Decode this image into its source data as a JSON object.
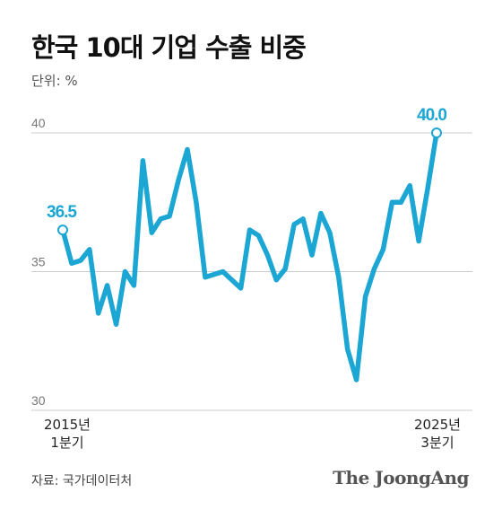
{
  "title": "한국 10대 기업 수출 비중",
  "unit_label": "단위: %",
  "source": "자료: 국가데이터처",
  "brand": "The JoongAng",
  "colors": {
    "line": "#1ba6d4",
    "grid": "#cccccc",
    "label": "#1ba6d4"
  },
  "chart_data": {
    "type": "line",
    "title": "한국 10대 기업 수출 비중",
    "ylabel": "단위: %",
    "ylim": [
      30,
      40
    ],
    "yticks": [
      30,
      35,
      40
    ],
    "x_start_label": [
      "2015년",
      "1분기"
    ],
    "x_end_label": [
      "2025년",
      "3분기"
    ],
    "annotations": [
      {
        "index": 0,
        "text": "36.5"
      },
      {
        "index": 42,
        "text": "40.0"
      }
    ],
    "values": [
      36.5,
      35.3,
      35.4,
      35.8,
      33.5,
      34.5,
      33.1,
      35.0,
      34.5,
      39.0,
      36.4,
      36.9,
      37.0,
      38.3,
      39.4,
      37.5,
      34.8,
      34.9,
      35.0,
      34.7,
      34.4,
      36.5,
      36.3,
      35.6,
      34.7,
      35.1,
      36.7,
      36.9,
      35.6,
      37.1,
      36.4,
      34.8,
      32.2,
      31.1,
      34.1,
      35.1,
      35.8,
      37.5,
      37.5,
      38.1,
      36.1,
      38.0,
      40.0
    ]
  }
}
